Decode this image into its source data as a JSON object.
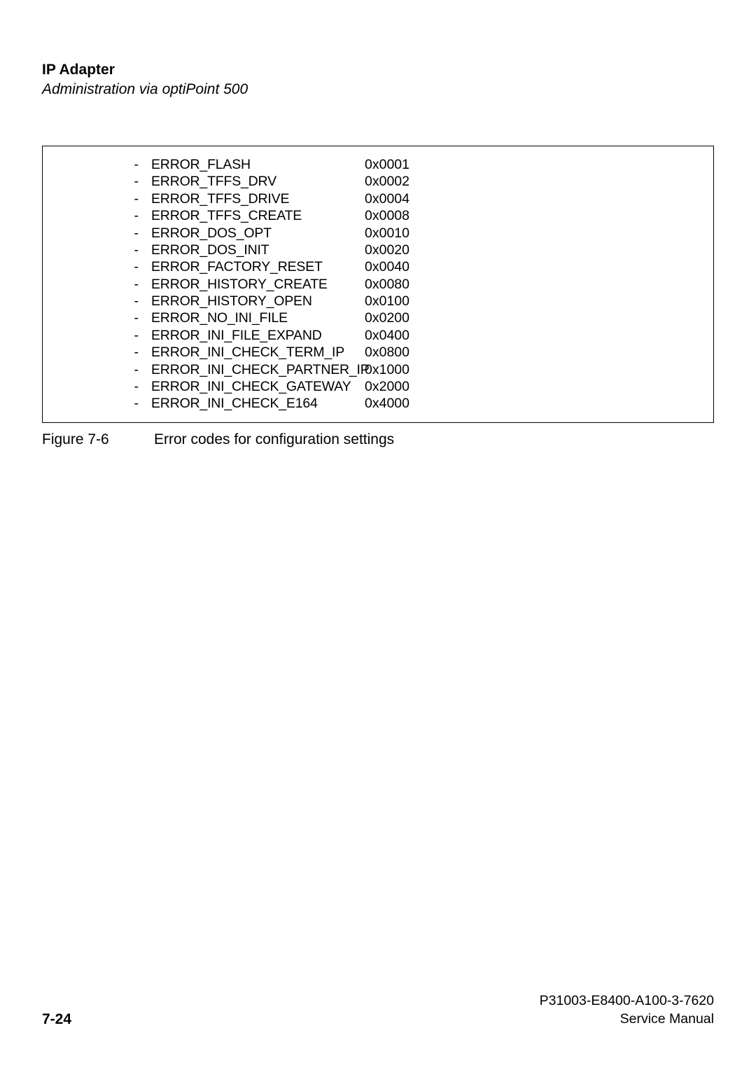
{
  "header": {
    "title": "IP Adapter",
    "subtitle": "Administration via optiPoint 500"
  },
  "errors": [
    {
      "name": "ERROR_FLASH",
      "code": "0x0001"
    },
    {
      "name": "ERROR_TFFS_DRV",
      "code": "0x0002"
    },
    {
      "name": "ERROR_TFFS_DRIVE",
      "code": "0x0004"
    },
    {
      "name": "ERROR_TFFS_CREATE",
      "code": "0x0008"
    },
    {
      "name": "ERROR_DOS_OPT",
      "code": "0x0010"
    },
    {
      "name": "ERROR_DOS_INIT",
      "code": "0x0020"
    },
    {
      "name": "ERROR_FACTORY_RESET",
      "code": "0x0040"
    },
    {
      "name": "ERROR_HISTORY_CREATE",
      "code": "0x0080"
    },
    {
      "name": "ERROR_HISTORY_OPEN",
      "code": "0x0100"
    },
    {
      "name": "ERROR_NO_INI_FILE",
      "code": "0x0200"
    },
    {
      "name": "ERROR_INI_FILE_EXPAND",
      "code": "0x0400"
    },
    {
      "name": "ERROR_INI_CHECK_TERM_IP",
      "code": "0x0800"
    },
    {
      "name": "ERROR_INI_CHECK_PARTNER_IP",
      "code": "0x1000"
    },
    {
      "name": "ERROR_INI_CHECK_GATEWAY",
      "code": "0x2000"
    },
    {
      "name": "ERROR_INI_CHECK_E164",
      "code": "0x4000"
    }
  ],
  "caption": {
    "label": "Figure 7-6",
    "text": "Error codes for configuration settings"
  },
  "footer": {
    "page": "7-24",
    "docnum": "P31003-E8400-A100-3-7620",
    "doctype": "Service Manual"
  },
  "style": {
    "dash": "-"
  }
}
